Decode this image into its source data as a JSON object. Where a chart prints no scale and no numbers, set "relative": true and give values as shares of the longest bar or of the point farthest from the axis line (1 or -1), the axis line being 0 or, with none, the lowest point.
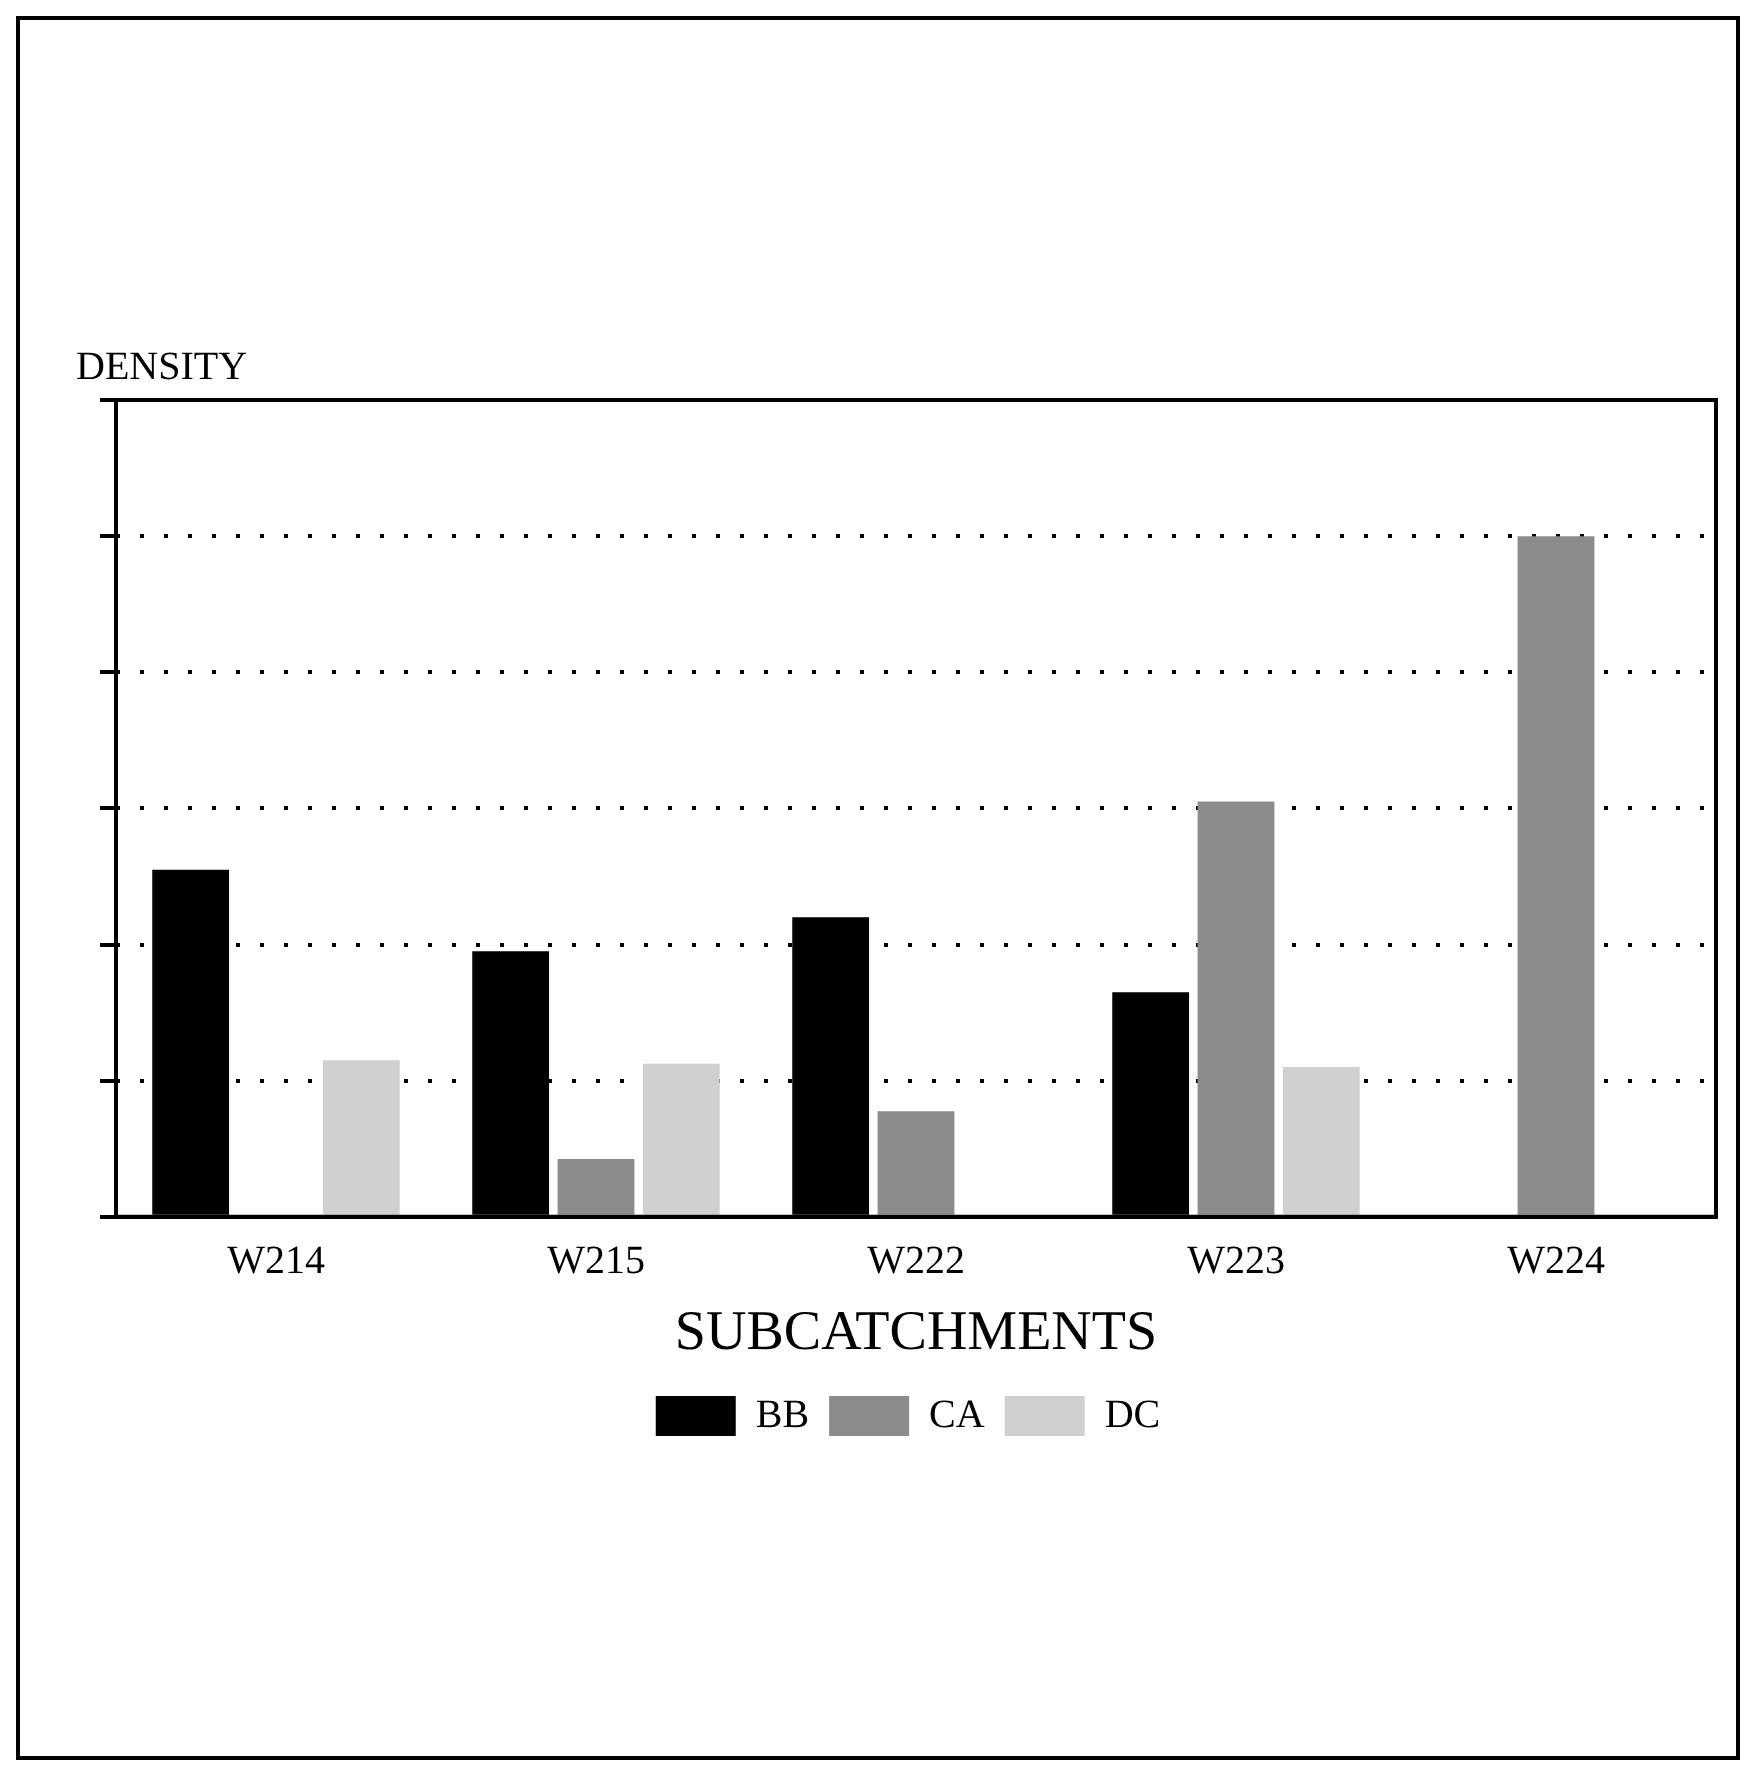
{
  "chart_data": {
    "type": "bar",
    "ylabel": "DENSITY",
    "xlabel": "SUBCATCHMENTS",
    "relative": true,
    "grid": "y",
    "legend": "bottom",
    "categories": [
      "W214",
      "W215",
      "W222",
      "W223",
      "W224"
    ],
    "series": [
      {
        "name": "BB",
        "color": "#000000",
        "values": [
          0.51,
          0.39,
          0.44,
          0.33,
          null
        ]
      },
      {
        "name": "CA",
        "color": "#8c8c8c",
        "values": [
          null,
          0.085,
          0.155,
          0.61,
          1
        ]
      },
      {
        "name": "DC",
        "color": "#d0d0d0",
        "values": [
          0.23,
          0.225,
          null,
          0.22,
          null
        ]
      }
    ]
  }
}
